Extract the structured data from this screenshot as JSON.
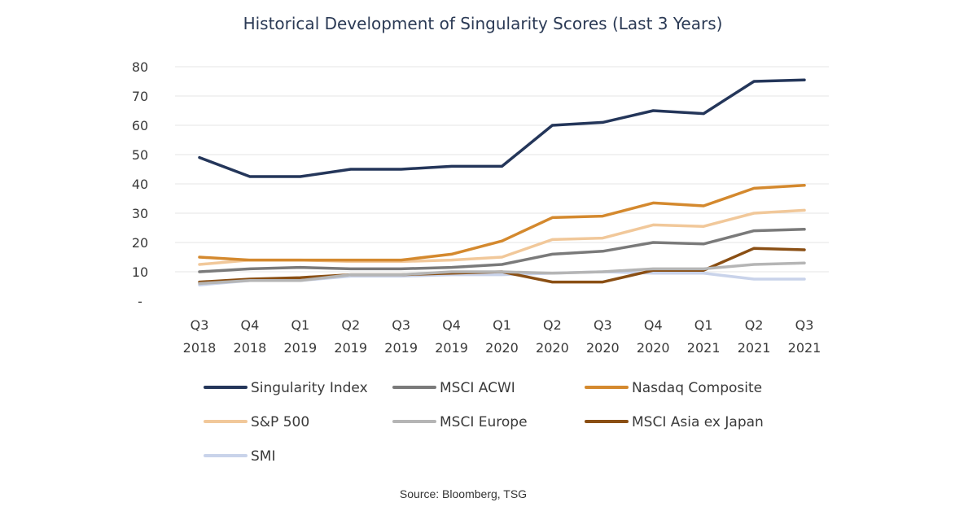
{
  "chart_data": {
    "type": "line",
    "title": "Historical Development of Singularity Scores (Last 3 Years)",
    "xlabel": "",
    "ylabel": "",
    "categories": [
      [
        "Q3",
        "2018"
      ],
      [
        "Q4",
        "2018"
      ],
      [
        "Q1",
        "2019"
      ],
      [
        "Q2",
        "2019"
      ],
      [
        "Q3",
        "2019"
      ],
      [
        "Q4",
        "2019"
      ],
      [
        "Q1",
        "2020"
      ],
      [
        "Q2",
        "2020"
      ],
      [
        "Q3",
        "2020"
      ],
      [
        "Q4",
        "2020"
      ],
      [
        "Q1",
        "2021"
      ],
      [
        "Q2",
        "2021"
      ],
      [
        "Q3",
        "2021"
      ]
    ],
    "yticks": [
      {
        "value": 0,
        "label": "-"
      },
      {
        "value": 10,
        "label": "10"
      },
      {
        "value": 20,
        "label": "20"
      },
      {
        "value": 30,
        "label": "30"
      },
      {
        "value": 40,
        "label": "40"
      },
      {
        "value": 50,
        "label": "50"
      },
      {
        "value": 60,
        "label": "60"
      },
      {
        "value": 70,
        "label": "70"
      },
      {
        "value": 80,
        "label": "80"
      }
    ],
    "ylim": [
      0,
      80
    ],
    "grid": true,
    "legend_position": "bottom",
    "series": [
      {
        "name": "Singularity Index",
        "color": "#24365a",
        "values": [
          49,
          42.5,
          42.5,
          45,
          45,
          46,
          46,
          60,
          61,
          65,
          64,
          75,
          75.5
        ]
      },
      {
        "name": "MSCI ACWI",
        "color": "#7a7a7a",
        "values": [
          10,
          11,
          11.5,
          11,
          11,
          11.5,
          12.5,
          16,
          17,
          20,
          19.5,
          24,
          24.5
        ]
      },
      {
        "name": "Nasdaq Composite",
        "color": "#d4892e",
        "values": [
          15,
          14,
          14,
          14,
          14,
          16,
          20.5,
          28.5,
          29,
          33.5,
          32.5,
          38.5,
          39.5
        ]
      },
      {
        "name": "S&P 500",
        "color": "#f1c89a",
        "values": [
          12.5,
          14,
          14,
          13.5,
          13.5,
          14,
          15,
          21,
          21.5,
          26,
          25.5,
          30,
          31
        ]
      },
      {
        "name": "MSCI Europe",
        "color": "#b5b5b5",
        "values": [
          6,
          7,
          7,
          9,
          9,
          10,
          10,
          9.5,
          10,
          11,
          11,
          12.5,
          13
        ]
      },
      {
        "name": "MSCI Asia ex Japan",
        "color": "#8a4f14",
        "values": [
          6.5,
          7.5,
          8,
          9,
          9,
          9.5,
          10,
          6.5,
          6.5,
          10.5,
          10.5,
          18,
          17.5
        ]
      },
      {
        "name": "SMI",
        "color": "#c9d3ea",
        "values": [
          5.5,
          7,
          7,
          8.5,
          8.5,
          9,
          9,
          9.5,
          10,
          9.5,
          9.5,
          7.5,
          7.5
        ]
      }
    ],
    "source": "Source: Bloomberg, TSG"
  }
}
